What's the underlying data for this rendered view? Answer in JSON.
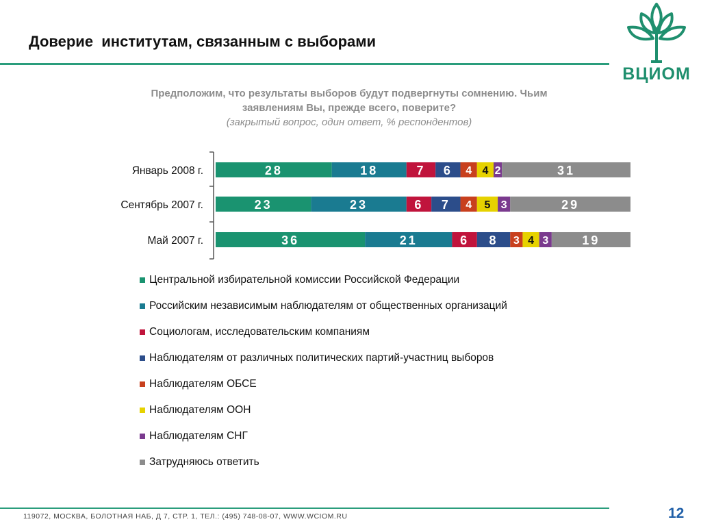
{
  "header": {
    "title": "Доверие  институтам, связанным с выборами",
    "logo_text": "ВЦИОМ"
  },
  "question": {
    "line1": "Предположим, что результаты выборов будут подвергнуты сомнению. Чьим",
    "line2": "заявлениям Вы, прежде всего, поверите?",
    "note": "(закрытый вопрос, один ответ, % респондентов)"
  },
  "chart_data": {
    "type": "bar",
    "orientation": "horizontal",
    "stacked": true,
    "categories": [
      "Январь 2008 г.",
      "Сентябрь 2007 г.",
      "Май 2007 г."
    ],
    "series": [
      {
        "name": "Центральной избирательной комиссии Российской Федерации",
        "color": "#1a9370",
        "values": [
          28,
          23,
          36
        ]
      },
      {
        "name": "Российским независимым наблюдателям от общественных организаций",
        "color": "#1a7b91",
        "values": [
          18,
          23,
          21
        ]
      },
      {
        "name": "Социологам, исследовательским компаниям",
        "color": "#c0143c",
        "values": [
          7,
          6,
          6
        ]
      },
      {
        "name": "Наблюдателям от различных политических партий-участниц выборов",
        "color": "#2c4d8a",
        "values": [
          6,
          7,
          8
        ]
      },
      {
        "name": "Наблюдателям ОБСЕ",
        "color": "#c8401e",
        "values": [
          4,
          4,
          3
        ]
      },
      {
        "name": "Наблюдателям ООН",
        "color": "#e6d200",
        "values": [
          4,
          5,
          4
        ]
      },
      {
        "name": "Наблюдателям СНГ",
        "color": "#7a3a8e",
        "values": [
          2,
          3,
          3
        ]
      },
      {
        "name": "Затрудняюсь ответить",
        "color": "#8c8c8c",
        "values": [
          31,
          29,
          19
        ]
      }
    ],
    "xlim": [
      0,
      100
    ],
    "grid": false,
    "legend_position": "bottom"
  },
  "footer": {
    "address": "119072, МОСКВА, БОЛОТНАЯ НАБ, Д 7, СТР. 1, ТЕЛ.: (495) 748-08-07, WWW.WCIOM.RU",
    "page_number": "12"
  }
}
